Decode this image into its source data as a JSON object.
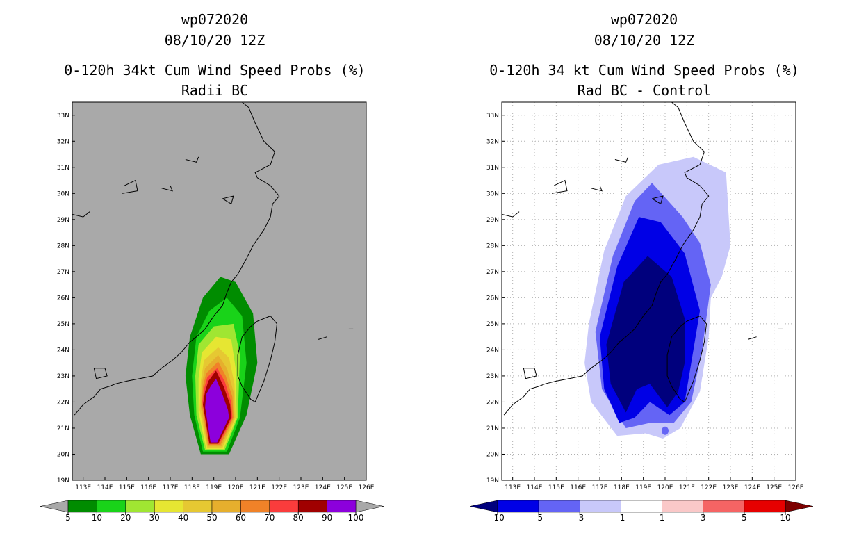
{
  "chart_data": [
    {
      "type": "filled-contour-map",
      "storm_id": "wp072020",
      "date_label": "08/10/20 12Z",
      "title": "0-120h 34kt Cum Wind Speed Probs (%)",
      "subtitle": "Radii BC",
      "x_ticks": [
        "113E",
        "114E",
        "115E",
        "116E",
        "117E",
        "118E",
        "119E",
        "120E",
        "121E",
        "122E",
        "123E",
        "124E",
        "125E",
        "126E"
      ],
      "y_ticks": [
        "19N",
        "20N",
        "21N",
        "22N",
        "23N",
        "24N",
        "25N",
        "26N",
        "27N",
        "28N",
        "29N",
        "30N",
        "31N",
        "32N",
        "33N"
      ],
      "lon_range": [
        112.5,
        126
      ],
      "lat_range": [
        19,
        33.5
      ],
      "grid": false,
      "background_color": "#a9a9a9",
      "colorbar": {
        "levels": [
          "5",
          "10",
          "20",
          "30",
          "40",
          "50",
          "60",
          "70",
          "80",
          "90",
          "100"
        ],
        "colors": [
          "#008c00",
          "#19d319",
          "#a0e632",
          "#e6e632",
          "#e6c832",
          "#e6af2d",
          "#f08228",
          "#fa3c3c",
          "#a00000",
          "#8c00dc"
        ],
        "under_color": "#a9a9a9",
        "over_color": "#a9a9a9"
      },
      "contours": [
        {
          "level": 5,
          "points": [
            [
              117.9,
              24.5
            ],
            [
              118.5,
              26.0
            ],
            [
              119.3,
              26.8
            ],
            [
              120.0,
              26.6
            ],
            [
              120.8,
              25.4
            ],
            [
              121.0,
              23.5
            ],
            [
              120.5,
              21.5
            ],
            [
              119.7,
              20.0
            ],
            [
              118.4,
              20.0
            ],
            [
              117.9,
              21.5
            ],
            [
              117.7,
              23.0
            ]
          ]
        },
        {
          "level": 10,
          "points": [
            [
              118.2,
              24.5
            ],
            [
              118.8,
              25.5
            ],
            [
              119.6,
              26.0
            ],
            [
              120.3,
              25.3
            ],
            [
              120.5,
              23.5
            ],
            [
              120.2,
              21.4
            ],
            [
              119.6,
              20.1
            ],
            [
              118.5,
              20.1
            ],
            [
              118.1,
              21.5
            ],
            [
              118.0,
              23.0
            ]
          ]
        },
        {
          "level": 20,
          "points": [
            [
              118.3,
              24.2
            ],
            [
              119.0,
              24.9
            ],
            [
              119.9,
              25.0
            ],
            [
              120.2,
              23.8
            ],
            [
              120.1,
              21.4
            ],
            [
              119.5,
              20.15
            ],
            [
              118.6,
              20.15
            ],
            [
              118.2,
              21.5
            ],
            [
              118.15,
              23.0
            ]
          ]
        },
        {
          "level": 30,
          "points": [
            [
              118.45,
              23.9
            ],
            [
              119.1,
              24.5
            ],
            [
              119.8,
              24.4
            ],
            [
              120.0,
              23.3
            ],
            [
              120.05,
              21.4
            ],
            [
              119.45,
              20.2
            ],
            [
              118.65,
              20.2
            ],
            [
              118.3,
              21.6
            ],
            [
              118.3,
              22.9
            ]
          ]
        },
        {
          "level": 40,
          "points": [
            [
              118.55,
              23.6
            ],
            [
              119.2,
              24.1
            ],
            [
              119.7,
              23.7
            ],
            [
              119.95,
              22.7
            ],
            [
              120.0,
              21.4
            ],
            [
              119.4,
              20.25
            ],
            [
              118.7,
              20.25
            ],
            [
              118.35,
              21.7
            ],
            [
              118.4,
              22.8
            ]
          ]
        },
        {
          "level": 50,
          "points": [
            [
              118.6,
              23.3
            ],
            [
              119.2,
              23.8
            ],
            [
              119.6,
              23.3
            ],
            [
              119.9,
              22.4
            ],
            [
              119.95,
              21.4
            ],
            [
              119.35,
              20.3
            ],
            [
              118.72,
              20.3
            ],
            [
              118.4,
              21.8
            ],
            [
              118.45,
              22.7
            ]
          ]
        },
        {
          "level": 60,
          "points": [
            [
              118.65,
              23.1
            ],
            [
              119.2,
              23.55
            ],
            [
              119.55,
              23.0
            ],
            [
              119.85,
              22.2
            ],
            [
              119.9,
              21.4
            ],
            [
              119.3,
              20.35
            ],
            [
              118.75,
              20.35
            ],
            [
              118.45,
              21.9
            ],
            [
              118.5,
              22.6
            ]
          ]
        },
        {
          "level": 70,
          "points": [
            [
              118.7,
              22.95
            ],
            [
              119.15,
              23.3
            ],
            [
              119.5,
              22.8
            ],
            [
              119.8,
              22.0
            ],
            [
              119.85,
              21.4
            ],
            [
              119.25,
              20.4
            ],
            [
              118.78,
              20.4
            ],
            [
              118.48,
              22.0
            ],
            [
              118.55,
              22.5
            ]
          ]
        },
        {
          "level": 80,
          "points": [
            [
              118.75,
              22.8
            ],
            [
              119.1,
              23.2
            ],
            [
              119.45,
              22.6
            ],
            [
              119.75,
              21.9
            ],
            [
              119.8,
              21.4
            ],
            [
              119.2,
              20.4
            ],
            [
              118.8,
              20.4
            ],
            [
              118.5,
              21.9
            ],
            [
              118.6,
              22.4
            ]
          ]
        },
        {
          "level": 90,
          "points": [
            [
              118.85,
              22.6
            ],
            [
              119.1,
              22.9
            ],
            [
              119.35,
              22.4
            ],
            [
              119.65,
              21.7
            ],
            [
              119.7,
              21.4
            ],
            [
              119.15,
              20.45
            ],
            [
              118.85,
              20.45
            ],
            [
              118.6,
              21.8
            ],
            [
              118.65,
              22.3
            ]
          ]
        }
      ]
    },
    {
      "type": "filled-contour-map",
      "storm_id": "wp072020",
      "date_label": "08/10/20 12Z",
      "title": "0-120h 34 kt Cum Wind Speed Probs (%)",
      "subtitle": "Rad BC - Control",
      "x_ticks": [
        "113E",
        "114E",
        "115E",
        "116E",
        "117E",
        "118E",
        "119E",
        "120E",
        "121E",
        "122E",
        "123E",
        "124E",
        "125E",
        "126E"
      ],
      "y_ticks": [
        "19N",
        "20N",
        "21N",
        "22N",
        "23N",
        "24N",
        "25N",
        "26N",
        "27N",
        "28N",
        "29N",
        "30N",
        "31N",
        "32N",
        "33N"
      ],
      "lon_range": [
        112.5,
        126
      ],
      "lat_range": [
        19,
        33.5
      ],
      "grid": true,
      "background_color": "#ffffff",
      "colorbar": {
        "levels": [
          "-10",
          "-5",
          "-3",
          "-1",
          "1",
          "3",
          "5",
          "10"
        ],
        "colors": [
          "#0000e6",
          "#6464f5",
          "#c8c8fa",
          "#ffffff",
          "#fac8c8",
          "#f56464",
          "#e60000"
        ],
        "under_color": "#00007d",
        "over_color": "#7d0000"
      },
      "contours": [
        {
          "level": -1,
          "points": [
            [
              116.5,
              25.0
            ],
            [
              117.2,
              27.8
            ],
            [
              118.2,
              29.9
            ],
            [
              119.7,
              31.1
            ],
            [
              121.3,
              31.4
            ],
            [
              122.8,
              30.8
            ],
            [
              123.0,
              28.0
            ],
            [
              122.6,
              26.8
            ],
            [
              122.1,
              26.0
            ],
            [
              122.0,
              24.5
            ],
            [
              121.6,
              22.4
            ],
            [
              120.7,
              21.0
            ],
            [
              119.9,
              20.6
            ],
            [
              119.1,
              20.8
            ],
            [
              117.8,
              20.7
            ],
            [
              116.6,
              22.0
            ],
            [
              116.3,
              23.5
            ]
          ]
        },
        {
          "level": -3,
          "points": [
            [
              116.8,
              24.7
            ],
            [
              117.6,
              27.6
            ],
            [
              118.6,
              29.7
            ],
            [
              119.4,
              30.4
            ],
            [
              120.8,
              29.1
            ],
            [
              121.6,
              28.1
            ],
            [
              122.1,
              26.5
            ],
            [
              121.7,
              24.0
            ],
            [
              121.2,
              22.0
            ],
            [
              120.4,
              21.2
            ],
            [
              119.3,
              21.2
            ],
            [
              118.2,
              21.0
            ],
            [
              117.1,
              22.5
            ]
          ]
        },
        {
          "level": -5,
          "points": [
            [
              117.0,
              24.5
            ],
            [
              117.8,
              27.2
            ],
            [
              118.8,
              29.1
            ],
            [
              119.8,
              28.9
            ],
            [
              120.9,
              27.7
            ],
            [
              121.6,
              25.5
            ],
            [
              121.2,
              23.5
            ],
            [
              120.9,
              22.0
            ],
            [
              120.2,
              21.5
            ],
            [
              119.3,
              22.0
            ],
            [
              118.6,
              21.4
            ],
            [
              117.9,
              21.2
            ],
            [
              117.2,
              22.5
            ]
          ]
        },
        {
          "level": -10,
          "points": [
            [
              117.3,
              24.2
            ],
            [
              118.1,
              26.6
            ],
            [
              119.2,
              27.6
            ],
            [
              120.3,
              26.8
            ],
            [
              120.9,
              25.2
            ],
            [
              120.9,
              23.5
            ],
            [
              120.6,
              22.4
            ],
            [
              120.1,
              21.8
            ],
            [
              119.3,
              22.7
            ],
            [
              118.7,
              22.5
            ],
            [
              118.2,
              21.6
            ],
            [
              117.5,
              22.7
            ]
          ]
        }
      ],
      "annotations": [
        {
          "type": "small-patch",
          "level": -3,
          "lon": 120.0,
          "lat": 20.9
        }
      ]
    }
  ]
}
